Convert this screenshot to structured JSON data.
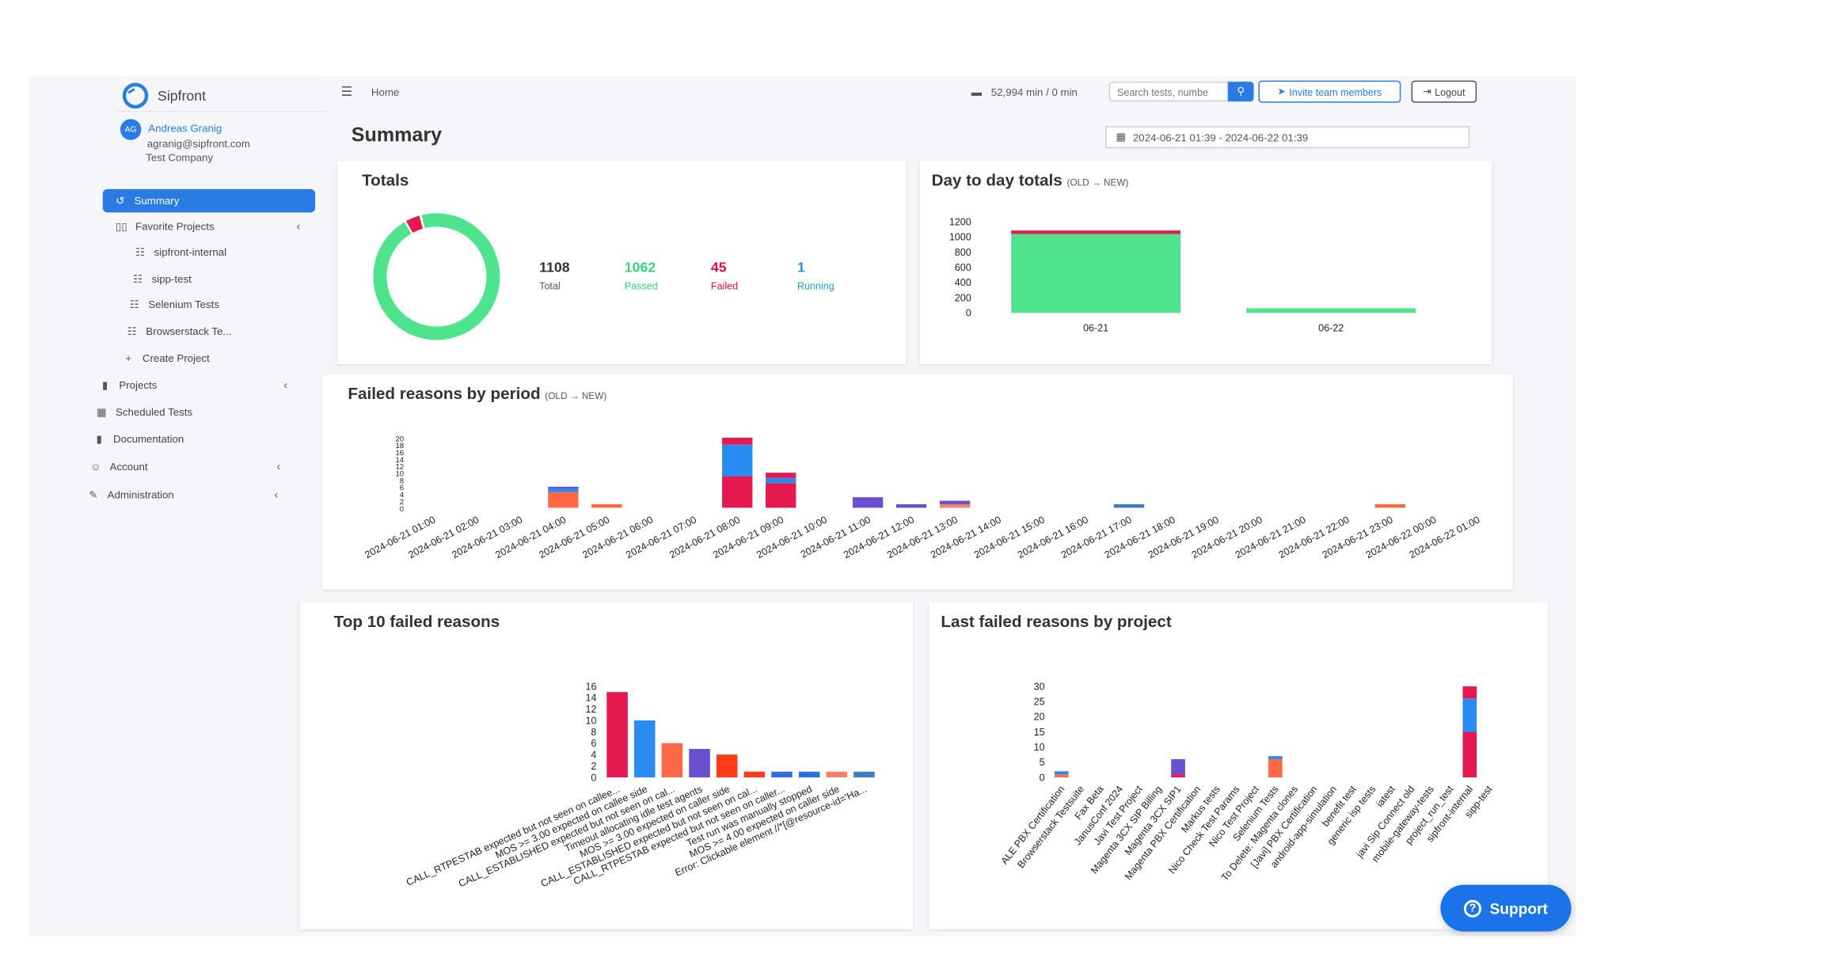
{
  "brand": {
    "name": "Sipfront"
  },
  "user": {
    "initials": "AG",
    "name": "Andreas Granig",
    "email": "agranig@sipfront.com",
    "company": "Test Company"
  },
  "sidebar": {
    "summary": "Summary",
    "favorite_projects": "Favorite Projects",
    "favorites": [
      "sipfront-internal",
      "sipp-test",
      "Selenium Tests",
      "Browserstack Te..."
    ],
    "create_project": "Create Project",
    "projects": "Projects",
    "scheduled_tests": "Scheduled Tests",
    "documentation": "Documentation",
    "account": "Account",
    "administration": "Administration"
  },
  "header": {
    "breadcrumb": "Home",
    "minutes": "52,994 min / 0 min",
    "search_placeholder": "Search tests, numbe",
    "invite": "Invite team members",
    "logout": "Logout"
  },
  "page": {
    "title": "Summary",
    "date_range": "2024-06-21 01:39 - 2024-06-22 01:39"
  },
  "totals": {
    "title": "Totals",
    "total": {
      "value": "1108",
      "label": "Total"
    },
    "passed": {
      "value": "1062",
      "label": "Passed"
    },
    "failed": {
      "value": "45",
      "label": "Failed"
    },
    "running": {
      "value": "1",
      "label": "Running"
    }
  },
  "colors": {
    "passed": "#4fe38d",
    "failed": "#e5194f",
    "running": "#2a8bf2",
    "accent": "#2a7be4",
    "orange": "#ff6845",
    "purple": "#6a4fd0",
    "blue2": "#2d6ee0",
    "salmon": "#f7806c",
    "steel": "#3f7bbd"
  },
  "support": {
    "label": "Support"
  },
  "chart_data": [
    {
      "id": "totals_donut",
      "type": "pie",
      "values": [
        1062,
        45,
        1
      ],
      "labels": [
        "Passed",
        "Failed",
        "Running"
      ]
    },
    {
      "id": "day_to_day",
      "type": "bar",
      "title": "Day to day totals",
      "subtitle": "(OLD → NEW)",
      "categories": [
        "06-21",
        "06-22"
      ],
      "series": [
        {
          "values": [
            1040,
            60
          ]
        },
        {
          "values": [
            45,
            0
          ]
        }
      ],
      "yticks": [
        0,
        200,
        400,
        600,
        800,
        1000,
        1200
      ],
      "ylim": [
        0,
        1200
      ]
    },
    {
      "id": "failed_by_period",
      "type": "bar",
      "title": "Failed reasons by period",
      "subtitle": "(OLD → NEW)",
      "categories": [
        "2024-06-21 01:00",
        "2024-06-21 02:00",
        "2024-06-21 03:00",
        "2024-06-21 04:00",
        "2024-06-21 05:00",
        "2024-06-21 06:00",
        "2024-06-21 07:00",
        "2024-06-21 08:00",
        "2024-06-21 09:00",
        "2024-06-21 10:00",
        "2024-06-21 11:00",
        "2024-06-21 12:00",
        "2024-06-21 13:00",
        "2024-06-21 14:00",
        "2024-06-21 15:00",
        "2024-06-21 16:00",
        "2024-06-21 17:00",
        "2024-06-21 18:00",
        "2024-06-21 19:00",
        "2024-06-21 20:00",
        "2024-06-21 21:00",
        "2024-06-21 22:00",
        "2024-06-21 23:00",
        "2024-06-22 00:00",
        "2024-06-22 01:00"
      ],
      "stacks": [
        [],
        [],
        [],
        [
          [
            4.5,
            "#ff6845"
          ],
          [
            1,
            "#2a8bf2"
          ],
          [
            0.5,
            "#6a4fd0"
          ]
        ],
        [
          [
            1,
            "#ff6845"
          ]
        ],
        [],
        [],
        [
          [
            9,
            "#e5194f"
          ],
          [
            9,
            "#2a8bf2"
          ],
          [
            2,
            "#e5194f"
          ]
        ],
        [
          [
            7,
            "#e5194f"
          ],
          [
            1.5,
            "#2a8bf2"
          ],
          [
            1.5,
            "#e5194f"
          ]
        ],
        [],
        [
          [
            3,
            "#6a4fd0"
          ]
        ],
        [
          [
            1,
            "#6a4fd0"
          ]
        ],
        [
          [
            1,
            "#f7806c"
          ],
          [
            1,
            "#6a4fd0"
          ]
        ],
        [],
        [],
        [],
        [
          [
            1,
            "#3f7bbd"
          ]
        ],
        [],
        [],
        [],
        [],
        [],
        [
          [
            1,
            "#ff6845"
          ]
        ],
        [],
        []
      ],
      "yticks": [
        0,
        2,
        4,
        6,
        8,
        10,
        12,
        14,
        16,
        18,
        20
      ],
      "ylim": [
        0,
        20
      ]
    },
    {
      "id": "top10_failed",
      "type": "bar",
      "title": "Top 10 failed reasons",
      "categories": [
        "CALL_RTPESTAB expected but not seen on callee...",
        "MOS >= 3.00 expected on callee side",
        "CALL_ESTABLISHED expected but not seen on cal...",
        "Timeout allocating idle test agents",
        "MOS >= 3.00 expected on caller side",
        "CALL_ESTABLISHED expected but not seen on cal...",
        "CALL_RTPESTAB expected but not seen on caller...",
        "Test run was manually stopped",
        "MOS >= 4.00 expected on caller side",
        "Error: Clickable element //*[@resource-id='Ha..."
      ],
      "values": [
        15,
        10,
        6,
        5,
        4,
        1,
        1,
        1,
        1,
        1
      ],
      "colors": [
        "#e5194f",
        "#2a8bf2",
        "#ff6845",
        "#6a4fd0",
        "#ff3b1a",
        "#ff3b1a",
        "#2d6ee0",
        "#2d6ee0",
        "#f7806c",
        "#3f7bbd"
      ],
      "yticks": [
        0,
        2,
        4,
        6,
        8,
        10,
        12,
        14,
        16
      ],
      "ylim": [
        0,
        16
      ]
    },
    {
      "id": "last_failed_by_project",
      "type": "bar",
      "title": "Last failed reasons by project",
      "categories": [
        "ALE PBX Certification",
        "Browserstack Testsuite",
        "Fax Beta",
        "JanusConf 2024",
        "Javi Test Project",
        "Magenta 3CX SIP Billing",
        "Magenta 3CX SIP1",
        "Magenta PBX Certification",
        "Markus tests",
        "Nico Check Test Params",
        "Nico Test Project",
        "Selenium Tests",
        "To Delete: Magenta clones",
        "[Javi] PBX Certification",
        "android-app-simulation",
        "benefit test",
        "generic isp tests",
        "iatest",
        "javi Sip Connect old",
        "mobile-gateway-tests",
        "project_run_test",
        "sipfront-internal",
        "sipp-test"
      ],
      "stacks": [
        [
          [
            1,
            "#ff6845"
          ],
          [
            1,
            "#2a8bf2"
          ]
        ],
        [],
        [],
        [],
        [],
        [],
        [
          [
            1,
            "#e5194f"
          ],
          [
            5,
            "#6a4fd0"
          ]
        ],
        [],
        [],
        [],
        [],
        [
          [
            6,
            "#ff6845"
          ],
          [
            1,
            "#2a8bf2"
          ]
        ],
        [],
        [],
        [],
        [],
        [],
        [],
        [],
        [],
        [],
        [
          [
            15,
            "#e5194f"
          ],
          [
            11,
            "#2a8bf2"
          ],
          [
            4,
            "#e5194f"
          ]
        ],
        []
      ],
      "yticks": [
        0,
        5,
        10,
        15,
        20,
        25,
        30
      ],
      "ylim": [
        0,
        30
      ]
    }
  ]
}
